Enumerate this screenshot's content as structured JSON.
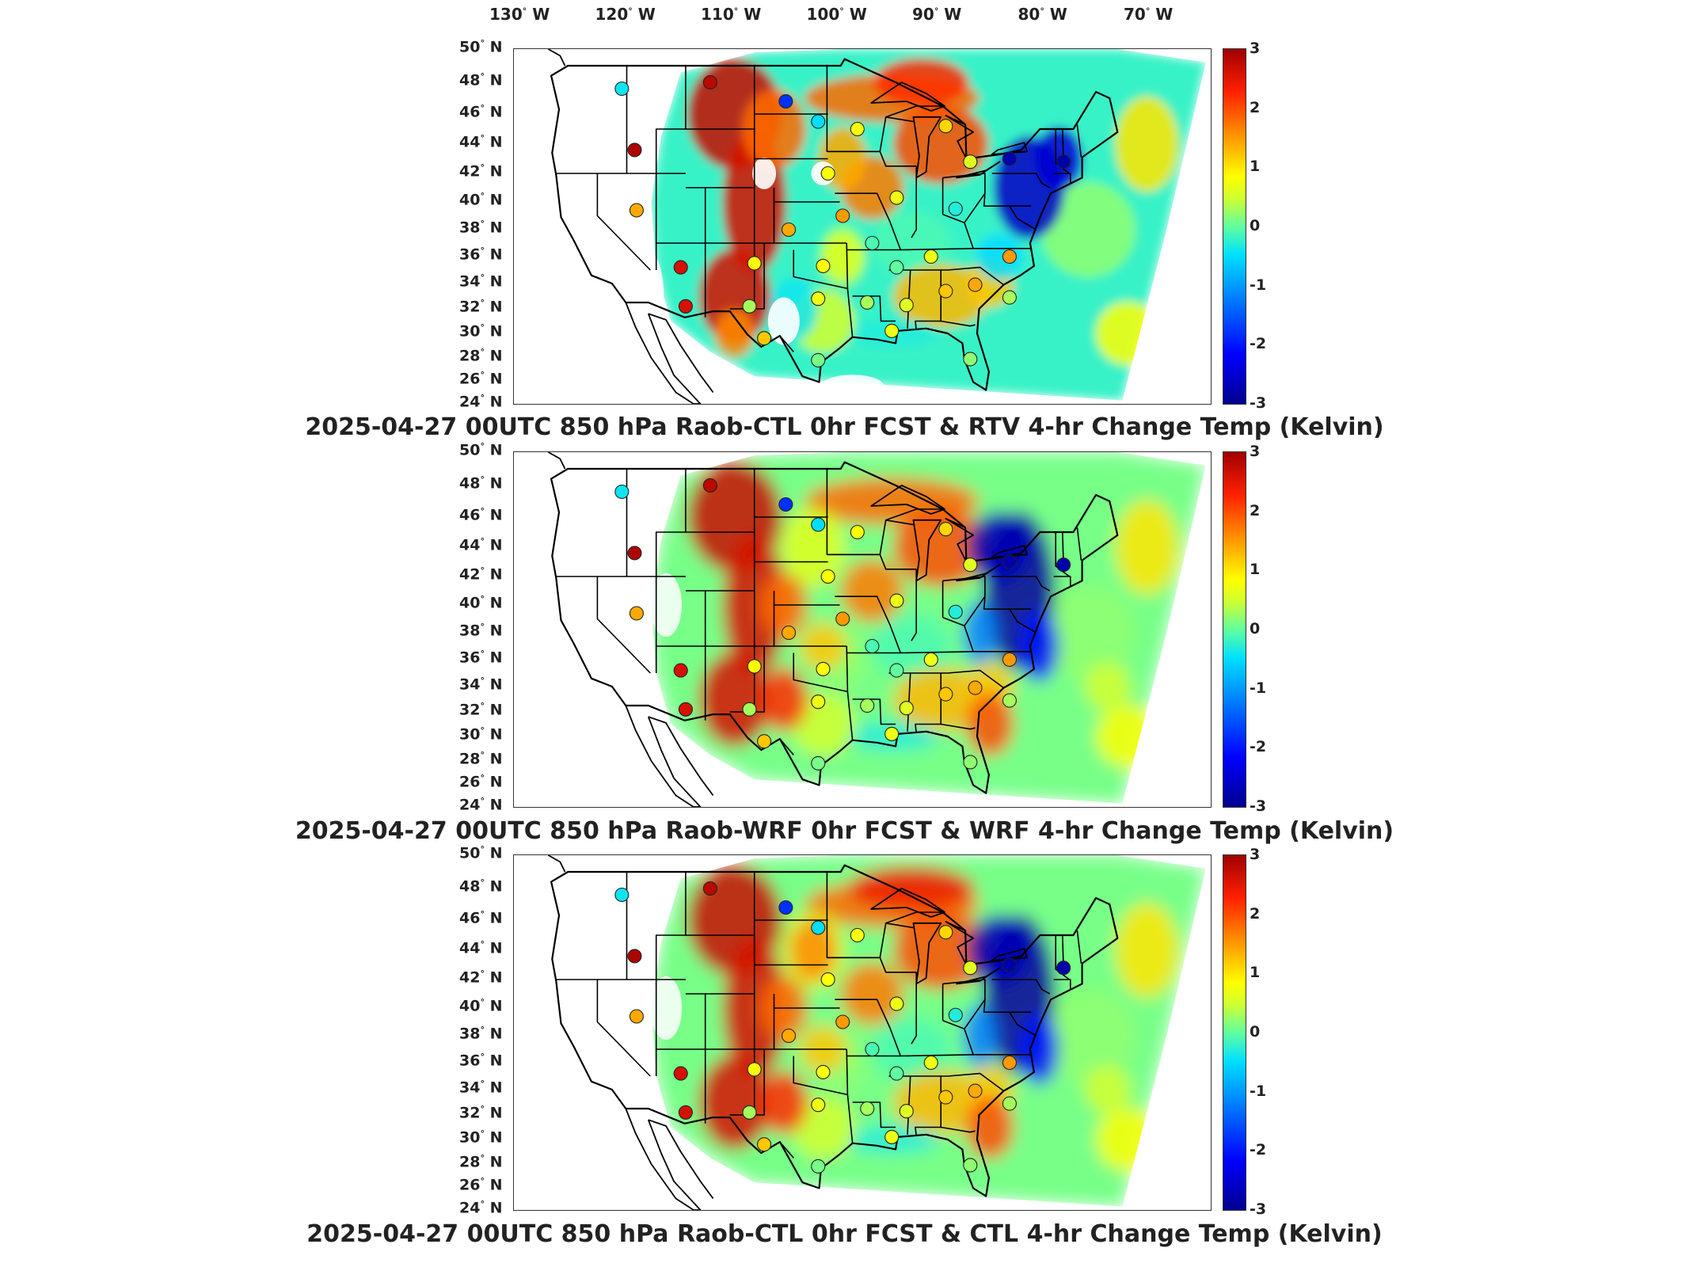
{
  "lon_labels": [
    "130",
    "120",
    "110",
    "100",
    "90",
    "80",
    "70"
  ],
  "lon_suffix": "W",
  "lat_labels": [
    "50",
    "48",
    "46",
    "44",
    "42",
    "40",
    "38",
    "36",
    "34",
    "32",
    "30",
    "28",
    "26",
    "24"
  ],
  "lat_suffix": "N",
  "degree_symbol": "°",
  "colorbar_ticks": [
    "3",
    "2",
    "1",
    "0",
    "-1",
    "-2",
    "-3"
  ],
  "colorbar_range": [
    -3,
    3
  ],
  "panels": [
    {
      "title": "2025-04-27 00UTC 850 hPa Raob-CTL 0hr FCST & RTV 4-hr Change Temp (Kelvin)"
    },
    {
      "title": "2025-04-27 00UTC 850 hPa Raob-WRF 0hr FCST & WRF 4-hr Change Temp (Kelvin)"
    },
    {
      "title": "2025-04-27 00UTC 850 hPa Raob-CTL 0hr FCST & CTL 4-hr Change Temp (Kelvin)"
    }
  ],
  "stations": [
    {
      "lon": -117.5,
      "lat": 47.6,
      "v": -0.4
    },
    {
      "lon": -108.5,
      "lat": 48.0,
      "v": 2.8
    },
    {
      "lon": -100.8,
      "lat": 46.8,
      "v": -1.8
    },
    {
      "lon": -97.5,
      "lat": 45.5,
      "v": -0.5
    },
    {
      "lon": -93.5,
      "lat": 45.0,
      "v": 0.8
    },
    {
      "lon": -84.5,
      "lat": 45.2,
      "v": 1.1
    },
    {
      "lon": -116.2,
      "lat": 43.6,
      "v": 2.9
    },
    {
      "lon": -96.5,
      "lat": 42.0,
      "v": 0.8
    },
    {
      "lon": -89.5,
      "lat": 40.3,
      "v": 0.7
    },
    {
      "lon": -82.0,
      "lat": 42.8,
      "v": 0.6
    },
    {
      "lon": -78.0,
      "lat": 43.0,
      "v": -2.8
    },
    {
      "lon": -72.5,
      "lat": 42.8,
      "v": -2.8
    },
    {
      "lon": -116.0,
      "lat": 39.4,
      "v": 1.4
    },
    {
      "lon": -100.5,
      "lat": 38.0,
      "v": 1.4
    },
    {
      "lon": -95.0,
      "lat": 39.0,
      "v": 1.5
    },
    {
      "lon": -83.5,
      "lat": 39.5,
      "v": -0.3
    },
    {
      "lon": -111.5,
      "lat": 35.2,
      "v": 2.6
    },
    {
      "lon": -104.0,
      "lat": 35.5,
      "v": 0.8
    },
    {
      "lon": -97.0,
      "lat": 35.3,
      "v": 0.8
    },
    {
      "lon": -92.0,
      "lat": 37.0,
      "v": -0.1
    },
    {
      "lon": -89.5,
      "lat": 35.2,
      "v": 0.0
    },
    {
      "lon": -86.0,
      "lat": 36.0,
      "v": 0.7
    },
    {
      "lon": -78.0,
      "lat": 36.0,
      "v": 1.5
    },
    {
      "lon": -111.0,
      "lat": 32.2,
      "v": 2.6
    },
    {
      "lon": -104.5,
      "lat": 32.2,
      "v": 0.3
    },
    {
      "lon": -97.5,
      "lat": 32.8,
      "v": 0.7
    },
    {
      "lon": -92.5,
      "lat": 32.5,
      "v": 0.3
    },
    {
      "lon": -88.5,
      "lat": 32.3,
      "v": 0.6
    },
    {
      "lon": -84.5,
      "lat": 33.4,
      "v": 1.2
    },
    {
      "lon": -81.5,
      "lat": 33.9,
      "v": 1.4
    },
    {
      "lon": -78.0,
      "lat": 32.9,
      "v": 0.3
    },
    {
      "lon": -103.0,
      "lat": 29.6,
      "v": 1.2
    },
    {
      "lon": -97.5,
      "lat": 27.8,
      "v": 0.1
    },
    {
      "lon": -90.0,
      "lat": 30.2,
      "v": 0.7
    },
    {
      "lon": -82.0,
      "lat": 27.9,
      "v": 0.2
    }
  ]
}
